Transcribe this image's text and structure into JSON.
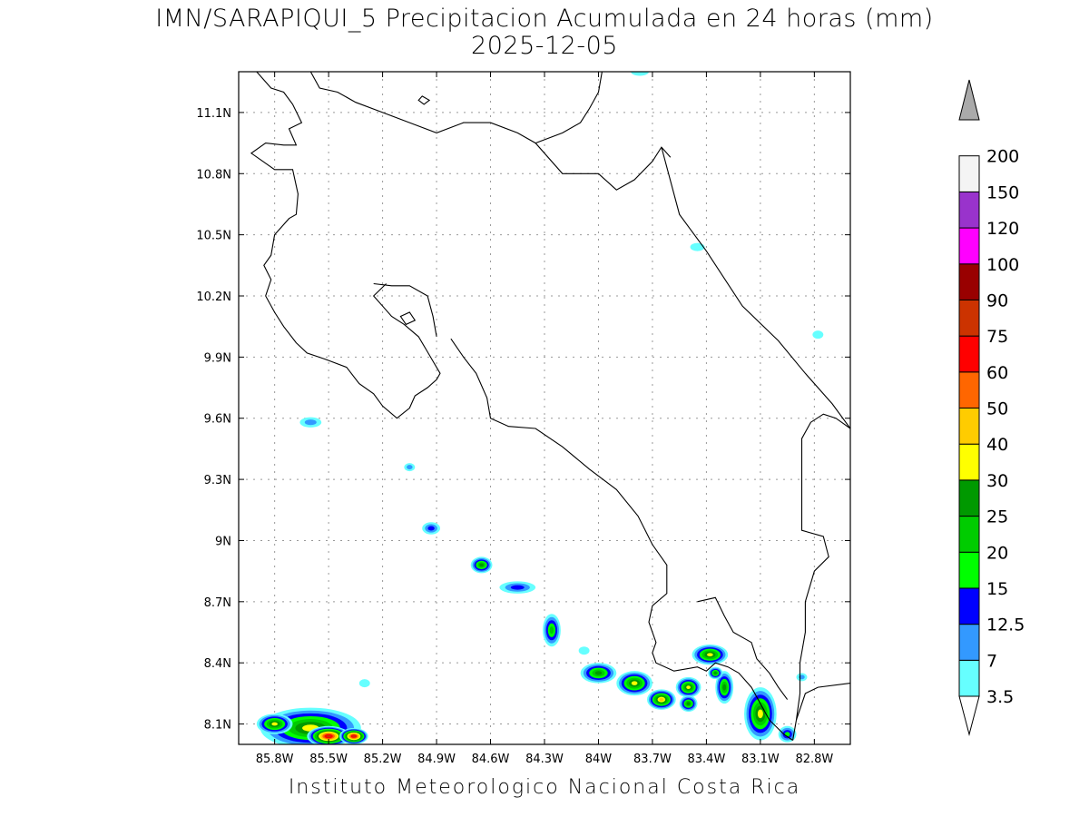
{
  "title": {
    "line1": "IMN/SARAPIQUI_5 Precipitacion Acumulada en 24 horas (mm)",
    "line2": "2025-12-05"
  },
  "footer": "Instituto Meteorologico Nacional Costa Rica",
  "map": {
    "lon_range": [
      -86.0,
      -82.6
    ],
    "lat_range": [
      8.0,
      11.3
    ],
    "lon_ticks": [
      {
        "value": -85.8,
        "label": "85.8W"
      },
      {
        "value": -85.5,
        "label": "85.5W"
      },
      {
        "value": -85.2,
        "label": "85.2W"
      },
      {
        "value": -84.9,
        "label": "84.9W"
      },
      {
        "value": -84.6,
        "label": "84.6W"
      },
      {
        "value": -84.3,
        "label": "84.3W"
      },
      {
        "value": -84.0,
        "label": "84W"
      },
      {
        "value": -83.7,
        "label": "83.7W"
      },
      {
        "value": -83.4,
        "label": "83.4W"
      },
      {
        "value": -83.1,
        "label": "83.1W"
      },
      {
        "value": -82.8,
        "label": "82.8W"
      }
    ],
    "lat_ticks": [
      {
        "value": 11.1,
        "label": "11.1N"
      },
      {
        "value": 10.8,
        "label": "10.8N"
      },
      {
        "value": 10.5,
        "label": "10.5N"
      },
      {
        "value": 10.2,
        "label": "10.2N"
      },
      {
        "value": 9.9,
        "label": "9.9N"
      },
      {
        "value": 9.6,
        "label": "9.6N"
      },
      {
        "value": 9.3,
        "label": "9.3N"
      },
      {
        "value": 9.0,
        "label": "9N"
      },
      {
        "value": 8.7,
        "label": "8.7N"
      },
      {
        "value": 8.4,
        "label": "8.4N"
      },
      {
        "value": 8.1,
        "label": "8.1N"
      }
    ],
    "grid": true
  },
  "colorbar": {
    "levels": [
      {
        "label": "3.5",
        "color": "#66ffff"
      },
      {
        "label": "7",
        "color": "#3399ff"
      },
      {
        "label": "12.5",
        "color": "#0000ff"
      },
      {
        "label": "15",
        "color": "#00ff00"
      },
      {
        "label": "20",
        "color": "#00cc00"
      },
      {
        "label": "25",
        "color": "#009900"
      },
      {
        "label": "30",
        "color": "#ffff00"
      },
      {
        "label": "40",
        "color": "#ffcc00"
      },
      {
        "label": "50",
        "color": "#ff6600"
      },
      {
        "label": "60",
        "color": "#ff0000"
      },
      {
        "label": "75",
        "color": "#cc3300"
      },
      {
        "label": "90",
        "color": "#990000"
      },
      {
        "label": "100",
        "color": "#ff00ff"
      },
      {
        "label": "120",
        "color": "#9933cc"
      },
      {
        "label": "150",
        "color": "#f4f4f4"
      },
      {
        "label": "200",
        "color": "#aaaaaa"
      }
    ],
    "bottom_triangle_color": "#ffffff",
    "top_triangle_color": "#aaaaaa"
  },
  "precip_cells": [
    {
      "lon": -85.6,
      "lat": 8.08,
      "rx": 0.28,
      "ry": 0.1,
      "level": 30
    },
    {
      "lon": -85.8,
      "lat": 8.1,
      "rx": 0.1,
      "ry": 0.05,
      "level": 30
    },
    {
      "lon": -85.5,
      "lat": 8.04,
      "rx": 0.12,
      "ry": 0.05,
      "level": 75
    },
    {
      "lon": -85.36,
      "lat": 8.04,
      "rx": 0.08,
      "ry": 0.04,
      "level": 75
    },
    {
      "lon": -85.6,
      "lat": 9.58,
      "rx": 0.06,
      "ry": 0.025,
      "level": 7
    },
    {
      "lon": -85.05,
      "lat": 9.36,
      "rx": 0.03,
      "ry": 0.02,
      "level": 7
    },
    {
      "lon": -84.93,
      "lat": 9.06,
      "rx": 0.05,
      "ry": 0.03,
      "level": 12.5
    },
    {
      "lon": -84.65,
      "lat": 8.88,
      "rx": 0.06,
      "ry": 0.04,
      "level": 25
    },
    {
      "lon": -84.45,
      "lat": 8.77,
      "rx": 0.1,
      "ry": 0.03,
      "level": 12.5
    },
    {
      "lon": -84.26,
      "lat": 8.56,
      "rx": 0.05,
      "ry": 0.08,
      "level": 20
    },
    {
      "lon": -84.0,
      "lat": 8.35,
      "rx": 0.1,
      "ry": 0.05,
      "level": 25
    },
    {
      "lon": -83.8,
      "lat": 8.3,
      "rx": 0.1,
      "ry": 0.06,
      "level": 30
    },
    {
      "lon": -83.65,
      "lat": 8.22,
      "rx": 0.08,
      "ry": 0.05,
      "level": 40
    },
    {
      "lon": -83.5,
      "lat": 8.28,
      "rx": 0.07,
      "ry": 0.05,
      "level": 30
    },
    {
      "lon": -83.38,
      "lat": 8.44,
      "rx": 0.1,
      "ry": 0.05,
      "level": 30
    },
    {
      "lon": -83.3,
      "lat": 8.28,
      "rx": 0.05,
      "ry": 0.08,
      "level": 25
    },
    {
      "lon": -83.1,
      "lat": 8.15,
      "rx": 0.09,
      "ry": 0.13,
      "level": 30
    },
    {
      "lon": -83.5,
      "lat": 8.2,
      "rx": 0.05,
      "ry": 0.04,
      "level": 25
    },
    {
      "lon": -83.35,
      "lat": 8.35,
      "rx": 0.04,
      "ry": 0.03,
      "level": 25
    },
    {
      "lon": -82.95,
      "lat": 8.05,
      "rx": 0.05,
      "ry": 0.04,
      "level": 15
    },
    {
      "lon": -82.87,
      "lat": 8.33,
      "rx": 0.03,
      "ry": 0.02,
      "level": 7
    },
    {
      "lon": -83.45,
      "lat": 10.44,
      "rx": 0.04,
      "ry": 0.02,
      "level": 3.5
    },
    {
      "lon": -82.78,
      "lat": 10.01,
      "rx": 0.03,
      "ry": 0.02,
      "level": 3.5
    },
    {
      "lon": -83.77,
      "lat": 11.3,
      "rx": 0.05,
      "ry": 0.02,
      "level": 3.5
    },
    {
      "lon": -85.3,
      "lat": 8.3,
      "rx": 0.03,
      "ry": 0.02,
      "level": 3.5
    },
    {
      "lon": -84.08,
      "lat": 8.46,
      "rx": 0.03,
      "ry": 0.02,
      "level": 3.5
    }
  ],
  "coastlines": [
    [
      [
        -85.9,
        11.3
      ],
      [
        -85.82,
        11.22
      ],
      [
        -85.75,
        11.2
      ],
      [
        -85.7,
        11.14
      ],
      [
        -85.65,
        11.05
      ],
      [
        -85.72,
        11.02
      ],
      [
        -85.68,
        10.94
      ],
      [
        -85.75,
        10.94
      ],
      [
        -85.85,
        10.95
      ],
      [
        -85.93,
        10.9
      ],
      [
        -85.8,
        10.82
      ],
      [
        -85.7,
        10.82
      ],
      [
        -85.67,
        10.7
      ],
      [
        -85.68,
        10.6
      ],
      [
        -85.72,
        10.58
      ],
      [
        -85.8,
        10.5
      ],
      [
        -85.82,
        10.4
      ],
      [
        -85.86,
        10.35
      ],
      [
        -85.82,
        10.28
      ],
      [
        -85.85,
        10.2
      ],
      [
        -85.8,
        10.12
      ],
      [
        -85.75,
        10.05
      ],
      [
        -85.68,
        9.97
      ],
      [
        -85.62,
        9.92
      ],
      [
        -85.52,
        9.89
      ],
      [
        -85.4,
        9.85
      ],
      [
        -85.33,
        9.77
      ],
      [
        -85.25,
        9.72
      ],
      [
        -85.2,
        9.66
      ],
      [
        -85.12,
        9.6
      ],
      [
        -85.05,
        9.65
      ],
      [
        -85.02,
        9.71
      ],
      [
        -84.95,
        9.75
      ],
      [
        -84.9,
        9.79
      ],
      [
        -84.88,
        9.82
      ],
      [
        -84.92,
        9.88
      ],
      [
        -84.96,
        9.94
      ],
      [
        -85.0,
        10.0
      ],
      [
        -85.08,
        10.06
      ],
      [
        -85.15,
        10.1
      ],
      [
        -85.2,
        10.15
      ],
      [
        -85.25,
        10.2
      ],
      [
        -85.18,
        10.26
      ]
    ],
    [
      [
        -84.82,
        9.99
      ],
      [
        -84.75,
        9.9
      ],
      [
        -84.68,
        9.82
      ],
      [
        -84.62,
        9.7
      ],
      [
        -84.6,
        9.6
      ],
      [
        -84.5,
        9.56
      ],
      [
        -84.35,
        9.55
      ],
      [
        -84.2,
        9.46
      ],
      [
        -84.05,
        9.35
      ],
      [
        -83.9,
        9.25
      ],
      [
        -83.78,
        9.12
      ],
      [
        -83.7,
        8.98
      ],
      [
        -83.62,
        8.88
      ],
      [
        -83.62,
        8.74
      ],
      [
        -83.7,
        8.68
      ],
      [
        -83.72,
        8.6
      ],
      [
        -83.68,
        8.5
      ],
      [
        -83.7,
        8.45
      ],
      [
        -83.68,
        8.4
      ],
      [
        -83.58,
        8.36
      ],
      [
        -83.45,
        8.38
      ],
      [
        -83.4,
        8.36
      ],
      [
        -83.35,
        8.4
      ],
      [
        -83.28,
        8.38
      ],
      [
        -83.22,
        8.35
      ],
      [
        -83.15,
        8.28
      ],
      [
        -83.1,
        8.2
      ],
      [
        -83.05,
        8.12
      ],
      [
        -82.97,
        8.05
      ],
      [
        -82.92,
        8.02
      ]
    ],
    [
      [
        -85.6,
        11.3
      ],
      [
        -85.55,
        11.22
      ],
      [
        -85.45,
        11.2
      ],
      [
        -85.35,
        11.15
      ],
      [
        -85.2,
        11.1
      ],
      [
        -85.05,
        11.05
      ],
      [
        -84.9,
        11.0
      ],
      [
        -84.75,
        11.05
      ],
      [
        -84.6,
        11.05
      ],
      [
        -84.45,
        11.0
      ],
      [
        -84.35,
        10.95
      ],
      [
        -84.2,
        10.8
      ],
      [
        -84.0,
        10.8
      ],
      [
        -83.9,
        10.72
      ],
      [
        -83.8,
        10.77
      ],
      [
        -83.7,
        10.86
      ],
      [
        -83.65,
        10.93
      ],
      [
        -83.6,
        10.88
      ]
    ],
    [
      [
        -83.65,
        10.93
      ],
      [
        -83.55,
        10.6
      ],
      [
        -83.4,
        10.42
      ],
      [
        -83.2,
        10.15
      ],
      [
        -83.0,
        9.98
      ],
      [
        -82.85,
        9.82
      ],
      [
        -82.7,
        9.67
      ],
      [
        -82.6,
        9.55
      ]
    ],
    [
      [
        -82.6,
        9.55
      ],
      [
        -82.68,
        9.6
      ],
      [
        -82.75,
        9.62
      ],
      [
        -82.82,
        9.58
      ],
      [
        -82.87,
        9.5
      ],
      [
        -82.87,
        9.2
      ],
      [
        -82.87,
        9.05
      ],
      [
        -82.75,
        9.02
      ],
      [
        -82.72,
        8.92
      ],
      [
        -82.8,
        8.85
      ],
      [
        -82.85,
        8.7
      ],
      [
        -82.85,
        8.55
      ],
      [
        -82.88,
        8.4
      ],
      [
        -82.88,
        8.25
      ],
      [
        -82.9,
        8.12
      ],
      [
        -82.92,
        8.02
      ]
    ],
    [
      [
        -83.45,
        8.7
      ],
      [
        -83.35,
        8.72
      ],
      [
        -83.3,
        8.63
      ],
      [
        -83.25,
        8.55
      ],
      [
        -83.15,
        8.5
      ],
      [
        -83.12,
        8.42
      ],
      [
        -83.05,
        8.35
      ],
      [
        -83.0,
        8.28
      ],
      [
        -82.95,
        8.22
      ]
    ],
    [
      [
        -82.9,
        8.12
      ],
      [
        -82.85,
        8.25
      ],
      [
        -82.78,
        8.28
      ],
      [
        -82.6,
        8.3
      ]
    ],
    [
      [
        -83.98,
        11.3
      ],
      [
        -84.0,
        11.2
      ],
      [
        -84.05,
        11.12
      ],
      [
        -84.1,
        11.05
      ],
      [
        -84.2,
        11.0
      ],
      [
        -84.35,
        10.95
      ]
    ],
    [
      [
        -84.9,
        10.0
      ],
      [
        -84.92,
        10.1
      ],
      [
        -84.95,
        10.2
      ],
      [
        -85.05,
        10.25
      ],
      [
        -85.15,
        10.25
      ],
      [
        -85.25,
        10.26
      ]
    ]
  ],
  "islands": [
    [
      [
        -84.98,
        11.18
      ],
      [
        -84.94,
        11.16
      ],
      [
        -84.97,
        11.14
      ],
      [
        -85.0,
        11.16
      ],
      [
        -84.98,
        11.18
      ]
    ],
    [
      [
        -85.1,
        10.1
      ],
      [
        -85.05,
        10.12
      ],
      [
        -85.02,
        10.08
      ],
      [
        -85.07,
        10.06
      ],
      [
        -85.1,
        10.1
      ]
    ]
  ]
}
